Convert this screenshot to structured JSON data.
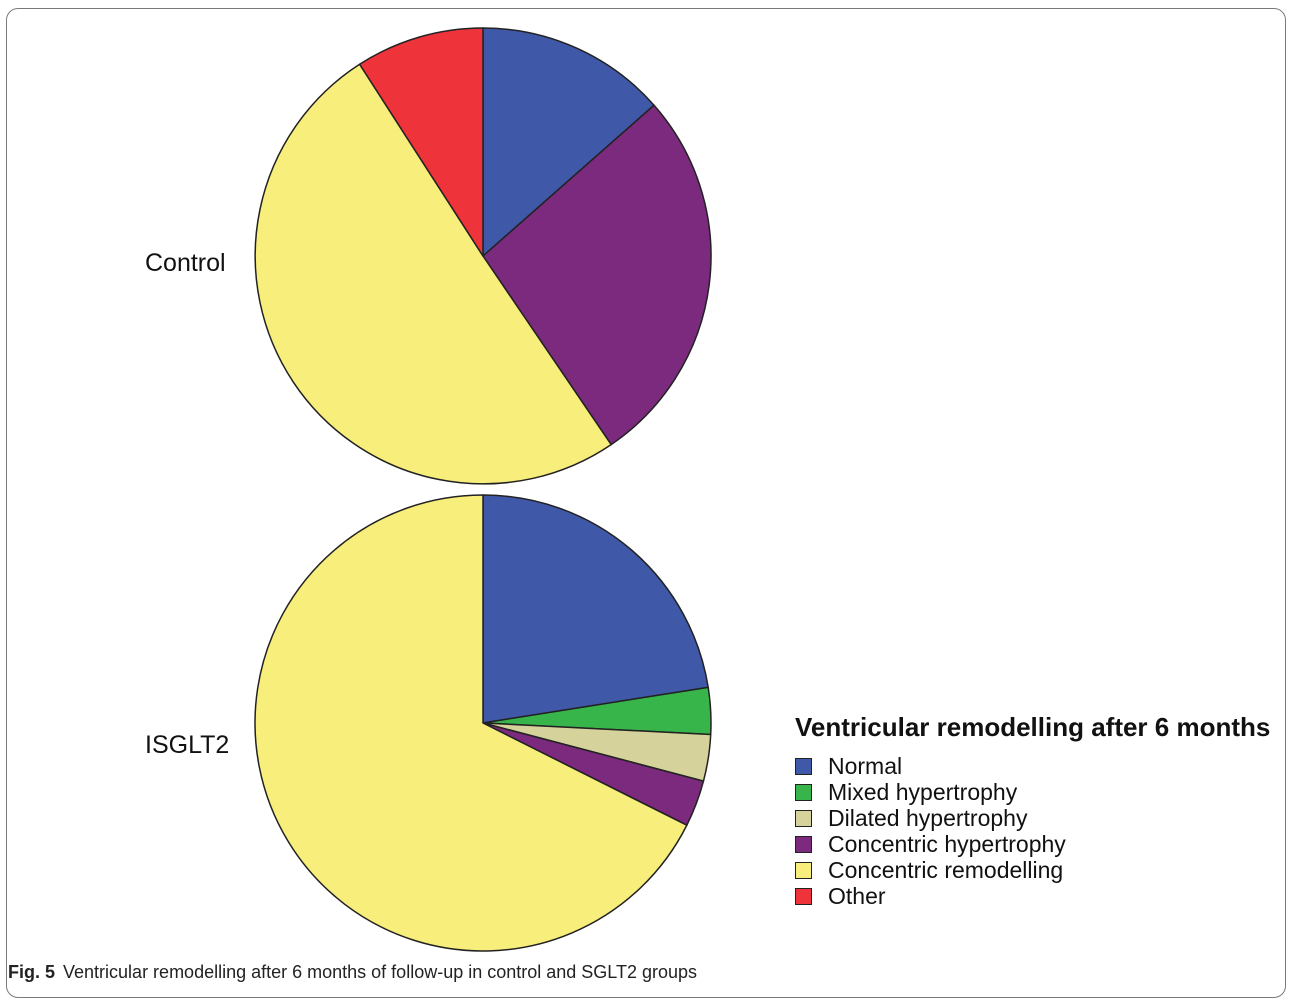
{
  "chart_data": {
    "type": "pie",
    "legend": {
      "title": "Ventricular remodelling after 6 months",
      "entries": [
        {
          "label": "Normal",
          "color": "#3f58a8"
        },
        {
          "label": "Mixed hypertrophy",
          "color": "#38b54a"
        },
        {
          "label": "Dilated hypertrophy",
          "color": "#d6d29c"
        },
        {
          "label": "Concentric hypertrophy",
          "color": "#7b2a7e"
        },
        {
          "label": "Concentric remodelling",
          "color": "#f7ee7c"
        },
        {
          "label": "Other",
          "color": "#ee343a"
        }
      ],
      "placement": "bottom-right"
    },
    "pies": [
      {
        "group": "Control",
        "slices": [
          {
            "label": "Normal",
            "percent": 13.5
          },
          {
            "label": "Concentric hypertrophy",
            "percent": 27.0
          },
          {
            "label": "Concentric remodelling",
            "percent": 50.4
          },
          {
            "label": "Other",
            "percent": 9.1
          }
        ]
      },
      {
        "group": "ISGLT2",
        "slices": [
          {
            "label": "Normal",
            "percent": 22.5
          },
          {
            "label": "Mixed hypertrophy",
            "percent": 3.3
          },
          {
            "label": "Dilated hypertrophy",
            "percent": 3.3
          },
          {
            "label": "Concentric hypertrophy",
            "percent": 3.3
          },
          {
            "label": "Concentric remodelling",
            "percent": 67.6
          }
        ]
      }
    ]
  },
  "caption": {
    "prefix": "Fig. 5",
    "text": "Ventricular remodelling after 6 months of follow-up in control and SGLT2 groups"
  }
}
